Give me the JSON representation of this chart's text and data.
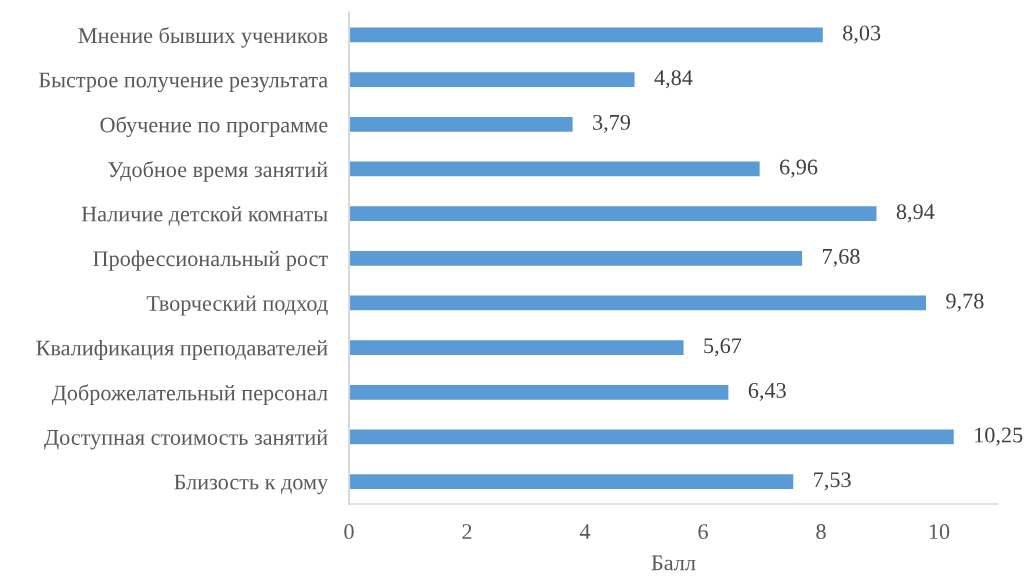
{
  "chart_data": {
    "type": "bar",
    "orientation": "horizontal",
    "xlabel": "Балл",
    "categories": [
      "Мнение бывших учеников",
      "Быстрое получение результата",
      "Обучение по программе",
      "Удобное время занятий",
      "Наличие детской комнаты",
      "Профессиональный рост",
      "Творческий подход",
      "Квалификация преподавателей",
      "Доброжелательный персонал",
      "Доступная стоимость занятий",
      "Близость к дому"
    ],
    "values": [
      8.03,
      4.84,
      3.79,
      6.96,
      8.94,
      7.68,
      9.78,
      5.67,
      6.43,
      10.25,
      7.53
    ],
    "value_labels": [
      "8,03",
      "4,84",
      "3,79",
      "6,96",
      "8,94",
      "7,68",
      "9,78",
      "5,67",
      "6,43",
      "10,25",
      "7,53"
    ],
    "color": "#5b9bd5",
    "xlim": [
      0,
      11
    ],
    "xticks": [
      0,
      2,
      4,
      6,
      8,
      10
    ]
  }
}
